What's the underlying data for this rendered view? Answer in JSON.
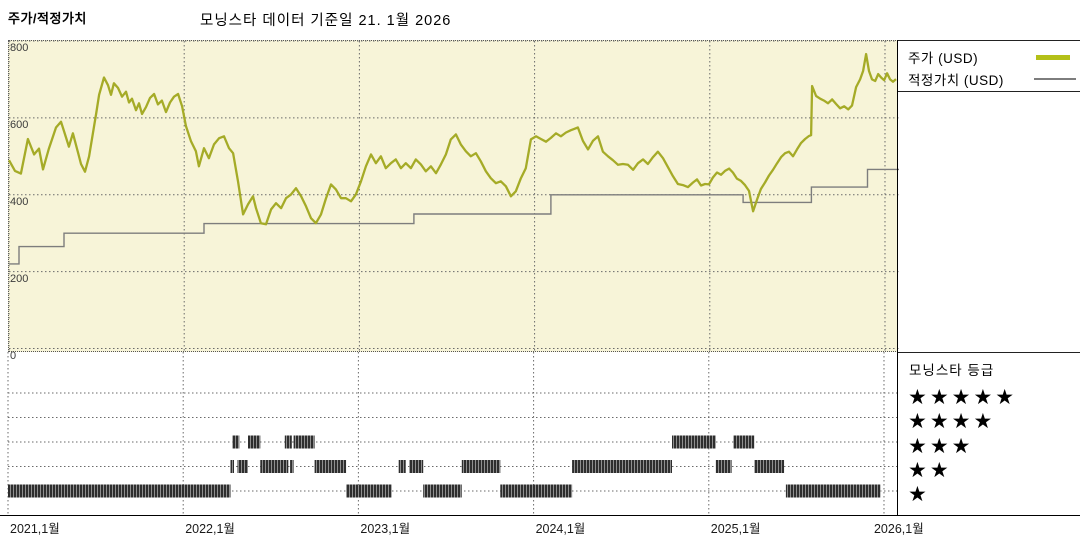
{
  "header": {
    "left_title": "주가/적정가치",
    "main_title": "모닝스타 데이터 기준일 21. 1월 2026"
  },
  "legend": {
    "price_label": "주가 (USD)",
    "fair_value_label": "적정가치 (USD)"
  },
  "rating_legend": {
    "title": "모닝스타 등급",
    "rows": [
      {
        "stars": 5,
        "stars_text": "★★★★★"
      },
      {
        "stars": 4,
        "stars_text": "★★★★"
      },
      {
        "stars": 3,
        "stars_text": "★★★"
      },
      {
        "stars": 2,
        "stars_text": "★★"
      },
      {
        "stars": 1,
        "stars_text": "★"
      }
    ]
  },
  "colors": {
    "plot_background": "#f7f4d8",
    "price_line": "#a5ab27",
    "price_swatch": "#b4c018",
    "fair_value_line": "#7d7d7d",
    "grid": "#6a6a6a",
    "rating_bar": "#2e2e2e",
    "rating_bar_stripe": "#8f8f8f",
    "star": "#000000"
  },
  "chart_data": {
    "type": "line",
    "title": "모닝스타 데이터 기준일 21. 1월 2026",
    "xlabel": "",
    "ylabel": "",
    "x_axis": {
      "ticks": [
        "2021,1월",
        "2022,1월",
        "2023,1월",
        "2024,1월",
        "2025,1월",
        "2026,1월"
      ],
      "tick_years": [
        2021,
        2022,
        2023,
        2024,
        2025,
        2026
      ],
      "range": [
        2021.0,
        2026.08
      ],
      "grid": true
    },
    "y_axis": {
      "ticks": [
        800,
        600,
        400,
        200,
        0
      ],
      "range": [
        0,
        800
      ],
      "grid": true
    },
    "legend_position": "top-right",
    "series": [
      {
        "name": "주가 (USD)",
        "type": "line",
        "points": [
          [
            2021.0,
            490
          ],
          [
            2021.034,
            462
          ],
          [
            2021.068,
            455
          ],
          [
            2021.108,
            545
          ],
          [
            2021.143,
            505
          ],
          [
            2021.171,
            520
          ],
          [
            2021.194,
            466
          ],
          [
            2021.228,
            520
          ],
          [
            2021.268,
            575
          ],
          [
            2021.297,
            590
          ],
          [
            2021.325,
            550
          ],
          [
            2021.342,
            525
          ],
          [
            2021.365,
            560
          ],
          [
            2021.394,
            510
          ],
          [
            2021.411,
            480
          ],
          [
            2021.434,
            460
          ],
          [
            2021.457,
            500
          ],
          [
            2021.479,
            560
          ],
          [
            2021.497,
            610
          ],
          [
            2021.514,
            660
          ],
          [
            2021.542,
            705
          ],
          [
            2021.565,
            685
          ],
          [
            2021.582,
            660
          ],
          [
            2021.599,
            690
          ],
          [
            2021.622,
            678
          ],
          [
            2021.645,
            655
          ],
          [
            2021.668,
            668
          ],
          [
            2021.685,
            640
          ],
          [
            2021.702,
            650
          ],
          [
            2021.725,
            620
          ],
          [
            2021.742,
            638
          ],
          [
            2021.759,
            610
          ],
          [
            2021.782,
            628
          ],
          [
            2021.805,
            652
          ],
          [
            2021.828,
            662
          ],
          [
            2021.85,
            635
          ],
          [
            2021.873,
            645
          ],
          [
            2021.896,
            615
          ],
          [
            2021.919,
            640
          ],
          [
            2021.942,
            655
          ],
          [
            2021.965,
            662
          ],
          [
            2021.988,
            630
          ],
          [
            2022.01,
            579
          ],
          [
            2022.039,
            539
          ],
          [
            2022.067,
            513
          ],
          [
            2022.084,
            474
          ],
          [
            2022.113,
            521
          ],
          [
            2022.141,
            495
          ],
          [
            2022.17,
            531
          ],
          [
            2022.199,
            547
          ],
          [
            2022.227,
            552
          ],
          [
            2022.256,
            521
          ],
          [
            2022.279,
            508
          ],
          [
            2022.307,
            435
          ],
          [
            2022.336,
            349
          ],
          [
            2022.364,
            375
          ],
          [
            2022.393,
            396
          ],
          [
            2022.41,
            365
          ],
          [
            2022.438,
            326
          ],
          [
            2022.467,
            323
          ],
          [
            2022.496,
            362
          ],
          [
            2022.524,
            378
          ],
          [
            2022.553,
            365
          ],
          [
            2022.581,
            391
          ],
          [
            2022.61,
            401
          ],
          [
            2022.638,
            417
          ],
          [
            2022.667,
            396
          ],
          [
            2022.695,
            370
          ],
          [
            2022.724,
            339
          ],
          [
            2022.752,
            326
          ],
          [
            2022.781,
            349
          ],
          [
            2022.809,
            390
          ],
          [
            2022.838,
            427
          ],
          [
            2022.866,
            414
          ],
          [
            2022.895,
            391
          ],
          [
            2022.923,
            391
          ],
          [
            2022.952,
            383
          ],
          [
            2022.98,
            401
          ],
          [
            2023.009,
            435
          ],
          [
            2023.037,
            474
          ],
          [
            2023.066,
            505
          ],
          [
            2023.094,
            482
          ],
          [
            2023.123,
            500
          ],
          [
            2023.151,
            469
          ],
          [
            2023.18,
            482
          ],
          [
            2023.208,
            492
          ],
          [
            2023.237,
            469
          ],
          [
            2023.265,
            482
          ],
          [
            2023.294,
            469
          ],
          [
            2023.322,
            492
          ],
          [
            2023.351,
            479
          ],
          [
            2023.379,
            461
          ],
          [
            2023.408,
            474
          ],
          [
            2023.437,
            456
          ],
          [
            2023.465,
            479
          ],
          [
            2023.494,
            505
          ],
          [
            2023.522,
            544
          ],
          [
            2023.551,
            557
          ],
          [
            2023.579,
            531
          ],
          [
            2023.608,
            513
          ],
          [
            2023.636,
            500
          ],
          [
            2023.665,
            508
          ],
          [
            2023.693,
            487
          ],
          [
            2023.722,
            461
          ],
          [
            2023.75,
            443
          ],
          [
            2023.779,
            430
          ],
          [
            2023.807,
            435
          ],
          [
            2023.836,
            422
          ],
          [
            2023.865,
            396
          ],
          [
            2023.893,
            409
          ],
          [
            2023.922,
            443
          ],
          [
            2023.95,
            469
          ],
          [
            2023.979,
            544
          ],
          [
            2024.008,
            552
          ],
          [
            2024.036,
            545
          ],
          [
            2024.065,
            538
          ],
          [
            2024.093,
            548
          ],
          [
            2024.122,
            560
          ],
          [
            2024.15,
            552
          ],
          [
            2024.179,
            562
          ],
          [
            2024.207,
            568
          ],
          [
            2024.247,
            575
          ],
          [
            2024.276,
            540
          ],
          [
            2024.305,
            518
          ],
          [
            2024.333,
            540
          ],
          [
            2024.362,
            552
          ],
          [
            2024.39,
            512
          ],
          [
            2024.419,
            500
          ],
          [
            2024.447,
            490
          ],
          [
            2024.476,
            478
          ],
          [
            2024.504,
            480
          ],
          [
            2024.533,
            478
          ],
          [
            2024.562,
            465
          ],
          [
            2024.59,
            482
          ],
          [
            2024.619,
            492
          ],
          [
            2024.647,
            480
          ],
          [
            2024.676,
            498
          ],
          [
            2024.704,
            512
          ],
          [
            2024.733,
            495
          ],
          [
            2024.761,
            472
          ],
          [
            2024.79,
            448
          ],
          [
            2024.818,
            428
          ],
          [
            2024.847,
            425
          ],
          [
            2024.875,
            420
          ],
          [
            2024.904,
            432
          ],
          [
            2024.927,
            440
          ],
          [
            2024.95,
            424
          ],
          [
            2024.973,
            428
          ],
          [
            2024.995,
            427
          ],
          [
            2025.018,
            445
          ],
          [
            2025.041,
            458
          ],
          [
            2025.064,
            452
          ],
          [
            2025.087,
            462
          ],
          [
            2025.11,
            468
          ],
          [
            2025.132,
            458
          ],
          [
            2025.155,
            442
          ],
          [
            2025.178,
            436
          ],
          [
            2025.201,
            425
          ],
          [
            2025.224,
            410
          ],
          [
            2025.247,
            357
          ],
          [
            2025.27,
            388
          ],
          [
            2025.292,
            415
          ],
          [
            2025.315,
            432
          ],
          [
            2025.338,
            450
          ],
          [
            2025.361,
            465
          ],
          [
            2025.384,
            482
          ],
          [
            2025.407,
            498
          ],
          [
            2025.43,
            508
          ],
          [
            2025.452,
            512
          ],
          [
            2025.475,
            500
          ],
          [
            2025.498,
            518
          ],
          [
            2025.521,
            535
          ],
          [
            2025.544,
            545
          ],
          [
            2025.567,
            553
          ],
          [
            2025.578,
            555
          ],
          [
            2025.584,
            683
          ],
          [
            2025.607,
            657
          ],
          [
            2025.63,
            650
          ],
          [
            2025.652,
            645
          ],
          [
            2025.675,
            638
          ],
          [
            2025.698,
            648
          ],
          [
            2025.721,
            636
          ],
          [
            2025.744,
            625
          ],
          [
            2025.767,
            630
          ],
          [
            2025.79,
            622
          ],
          [
            2025.812,
            632
          ],
          [
            2025.835,
            680
          ],
          [
            2025.858,
            700
          ],
          [
            2025.875,
            722
          ],
          [
            2025.892,
            766
          ],
          [
            2025.909,
            722
          ],
          [
            2025.926,
            700
          ],
          [
            2025.944,
            696
          ],
          [
            2025.961,
            714
          ],
          [
            2025.978,
            705
          ],
          [
            2025.995,
            698
          ],
          [
            2026.012,
            716
          ],
          [
            2026.029,
            700
          ],
          [
            2026.046,
            694
          ],
          [
            2026.063,
            701
          ]
        ]
      },
      {
        "name": "적정가치 (USD)",
        "type": "step",
        "step_points": [
          [
            2021.0,
            220
          ],
          [
            2021.057,
            265
          ],
          [
            2021.314,
            300
          ],
          [
            2022.113,
            325
          ],
          [
            2023.311,
            350
          ],
          [
            2024.093,
            400
          ],
          [
            2025.19,
            380
          ],
          [
            2025.58,
            420
          ],
          [
            2025.9,
            466
          ]
        ],
        "end_x": 2026.08
      }
    ],
    "ratings": {
      "levels": [
        5,
        4,
        3,
        2,
        1
      ],
      "segments": [
        {
          "stars": 1,
          "from": 2021.0,
          "to": 2022.27
        },
        {
          "stars": 1,
          "from": 2022.93,
          "to": 2023.19
        },
        {
          "stars": 1,
          "from": 2023.37,
          "to": 2023.59
        },
        {
          "stars": 1,
          "from": 2023.81,
          "to": 2024.22
        },
        {
          "stars": 1,
          "from": 2025.44,
          "to": 2025.98
        },
        {
          "stars": 2,
          "from": 2022.27,
          "to": 2022.29
        },
        {
          "stars": 2,
          "from": 2022.31,
          "to": 2022.37
        },
        {
          "stars": 2,
          "from": 2022.44,
          "to": 2022.6
        },
        {
          "stars": 2,
          "from": 2022.61,
          "to": 2022.63
        },
        {
          "stars": 2,
          "from": 2022.75,
          "to": 2022.93
        },
        {
          "stars": 2,
          "from": 2023.23,
          "to": 2023.27
        },
        {
          "stars": 2,
          "from": 2023.29,
          "to": 2023.37
        },
        {
          "stars": 2,
          "from": 2023.59,
          "to": 2023.81
        },
        {
          "stars": 2,
          "from": 2024.22,
          "to": 2024.79
        },
        {
          "stars": 2,
          "from": 2025.04,
          "to": 2025.13
        },
        {
          "stars": 2,
          "from": 2025.26,
          "to": 2025.43
        },
        {
          "stars": 3,
          "from": 2022.28,
          "to": 2022.32
        },
        {
          "stars": 3,
          "from": 2022.37,
          "to": 2022.44
        },
        {
          "stars": 3,
          "from": 2022.58,
          "to": 2022.62
        },
        {
          "stars": 3,
          "from": 2022.63,
          "to": 2022.75
        },
        {
          "stars": 3,
          "from": 2024.79,
          "to": 2025.04
        },
        {
          "stars": 3,
          "from": 2025.14,
          "to": 2025.26
        }
      ]
    }
  }
}
